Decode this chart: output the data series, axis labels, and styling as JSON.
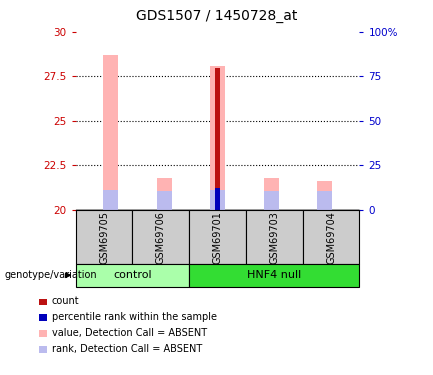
{
  "title": "GDS1507 / 1450728_at",
  "samples": [
    "GSM69705",
    "GSM69706",
    "GSM69701",
    "GSM69703",
    "GSM69704"
  ],
  "ylim_left": [
    20,
    30
  ],
  "ylim_right": [
    0,
    100
  ],
  "yticks_left": [
    20,
    22.5,
    25,
    27.5,
    30
  ],
  "yticks_right": [
    0,
    25,
    50,
    75,
    100
  ],
  "ytick_labels_left": [
    "20",
    "22.5",
    "25",
    "27.5",
    "30"
  ],
  "ytick_labels_right": [
    "0",
    "25",
    "50",
    "75",
    "100%"
  ],
  "bar_base": 20,
  "pink_bar_tops": [
    28.7,
    21.8,
    28.1,
    21.8,
    21.6
  ],
  "pink_bar_color": "#FFB3B3",
  "red_bar_tops": [
    20.0,
    20.0,
    28.0,
    20.0,
    20.0
  ],
  "red_bar_color": "#BB1111",
  "lavender_bar_tops": [
    21.1,
    21.05,
    21.15,
    21.05,
    21.05
  ],
  "lavender_bar_color": "#BBBBEE",
  "blue_bar_tops": [
    20.0,
    20.0,
    21.25,
    20.0,
    20.0
  ],
  "blue_bar_color": "#0000BB",
  "pink_bar_width": 0.28,
  "red_bar_width": 0.08,
  "group_colors": {
    "control": "#AAFFAA",
    "HNF4 null": "#33DD33"
  },
  "group_label": "genotype/variation",
  "legend_items": [
    {
      "color": "#BB1111",
      "label": "count"
    },
    {
      "color": "#0000BB",
      "label": "percentile rank within the sample"
    },
    {
      "color": "#FFB3B3",
      "label": "value, Detection Call = ABSENT"
    },
    {
      "color": "#BBBBEE",
      "label": "rank, Detection Call = ABSENT"
    }
  ],
  "left_tick_color": "#CC0000",
  "right_tick_color": "#0000CC",
  "fig_width": 4.33,
  "fig_height": 3.75
}
